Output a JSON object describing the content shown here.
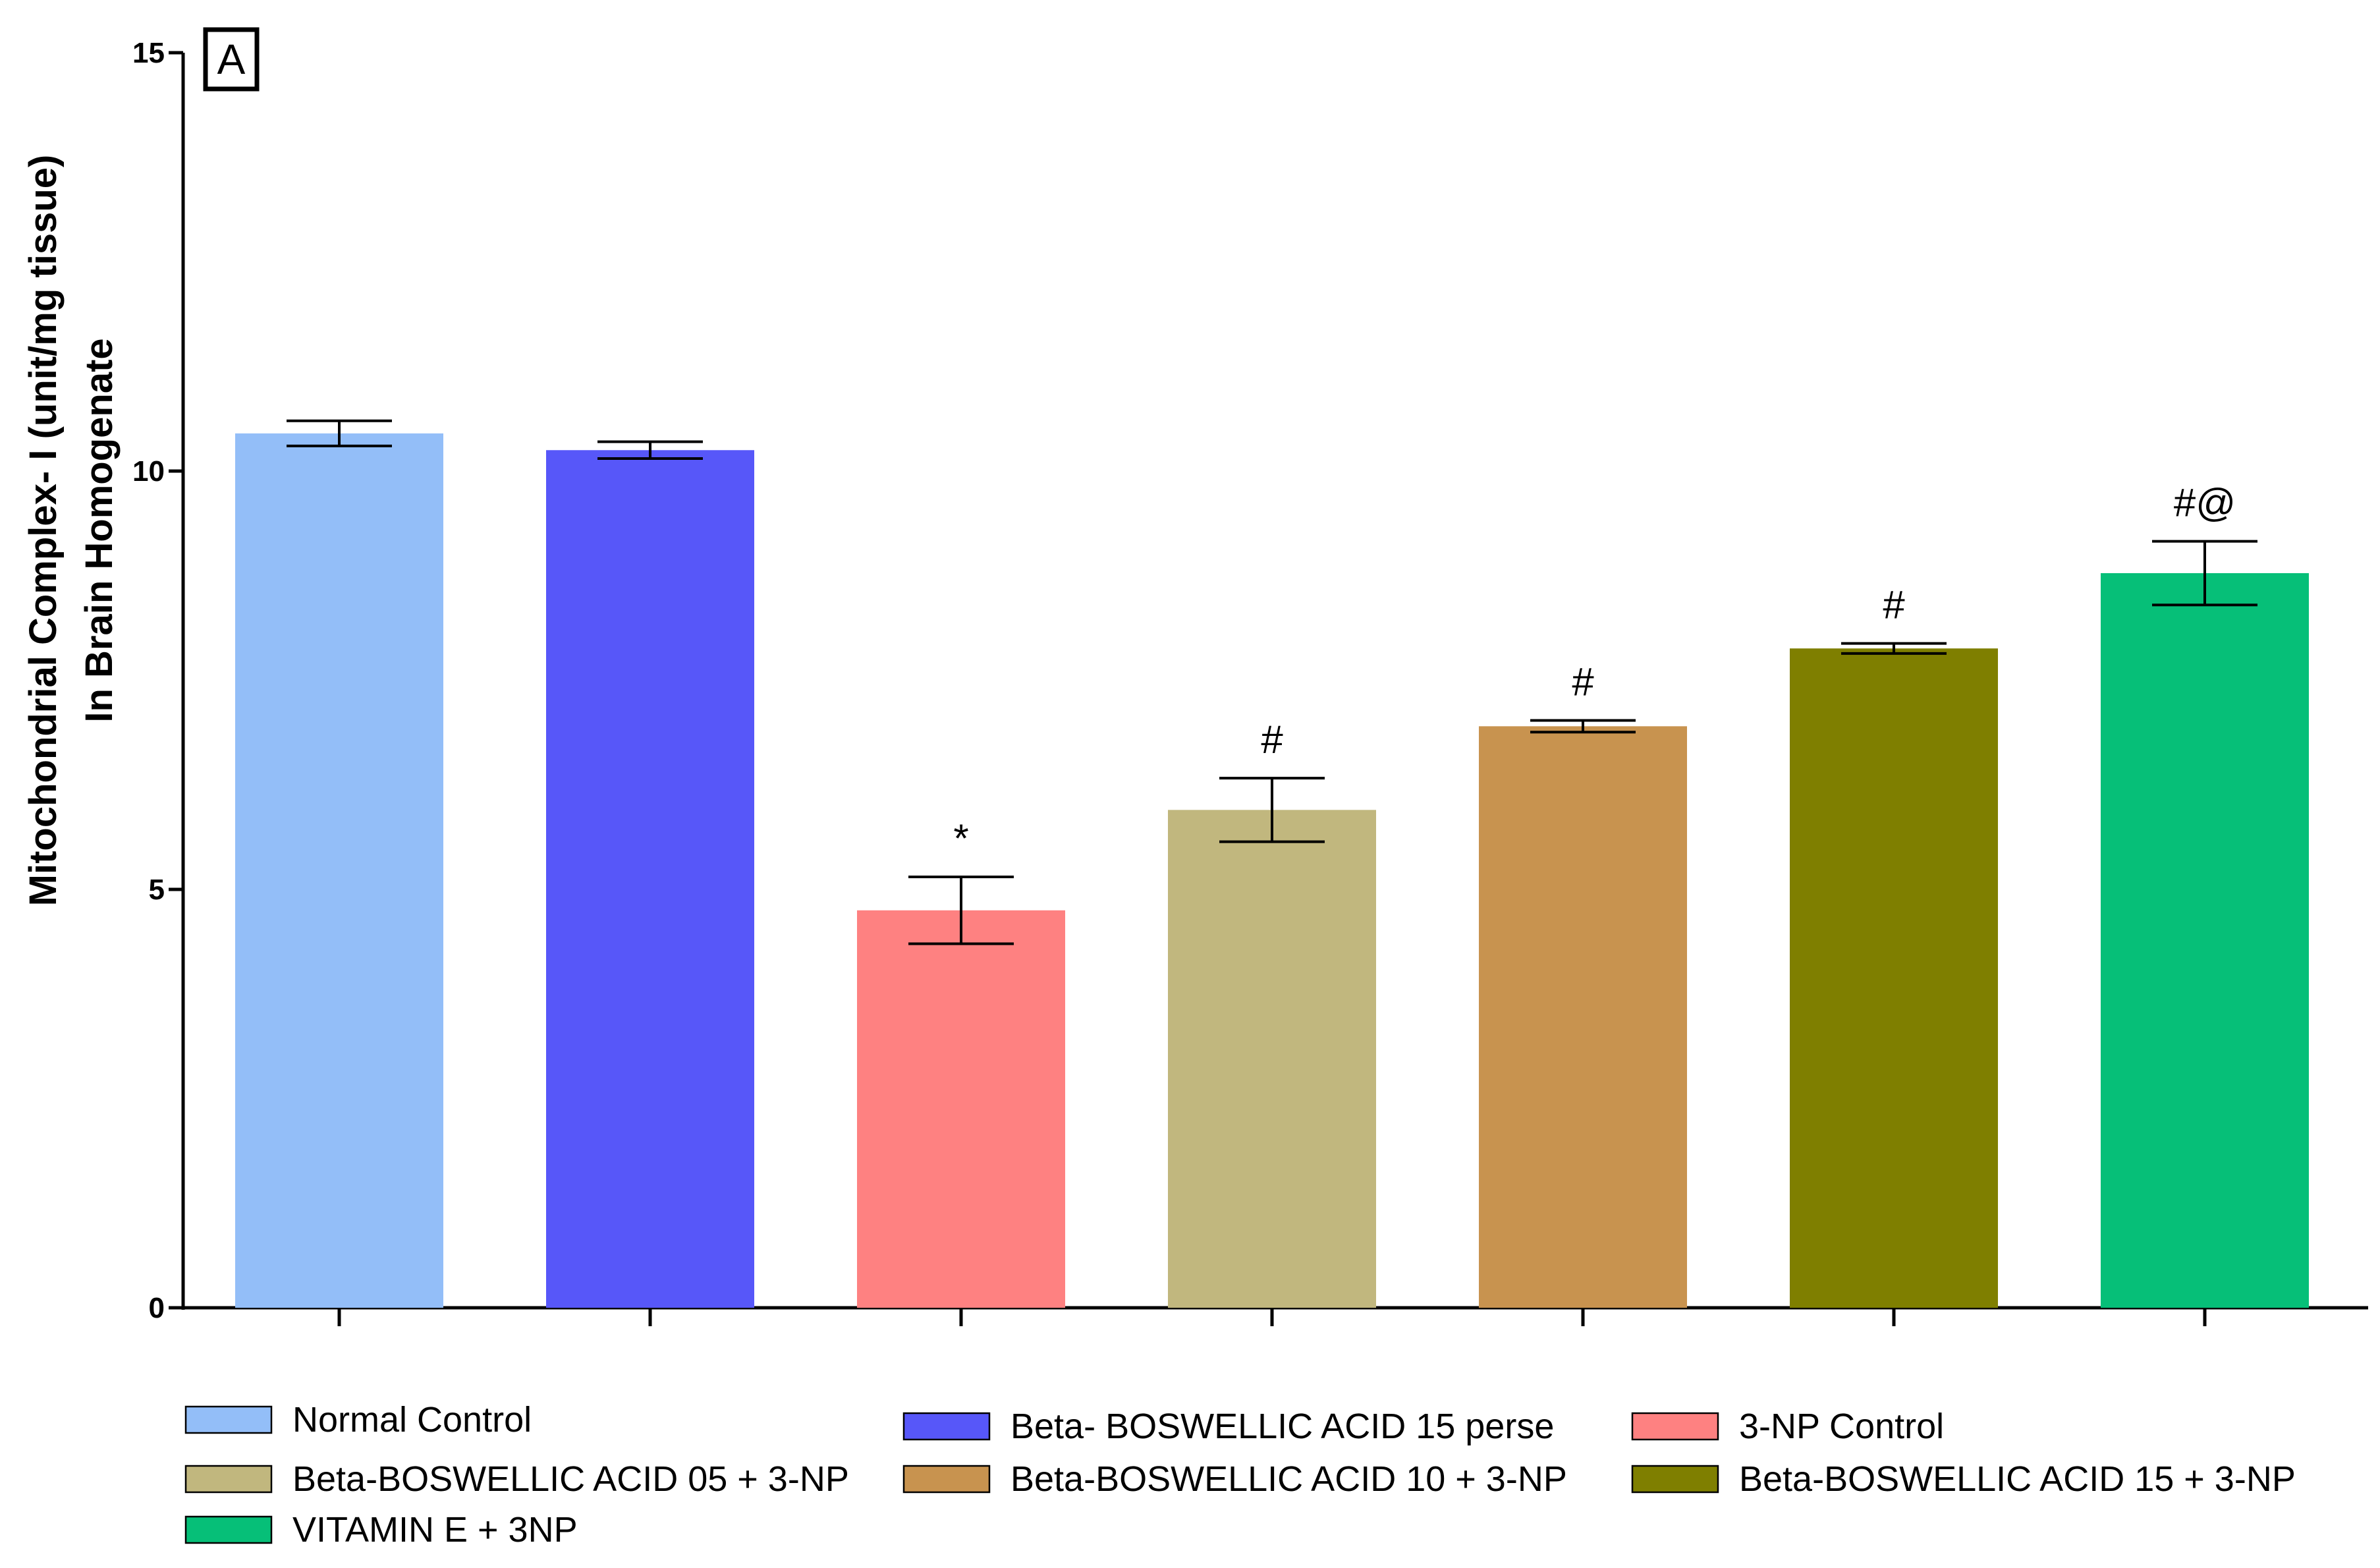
{
  "chart_data": {
    "type": "bar",
    "title": "",
    "panel_label": "A",
    "xlabel": "",
    "ylabel_lines": [
      "Mitochondrial Complex- I (unit/mg tissue)",
      "In Brain Homogenate"
    ],
    "ylim": [
      0,
      15
    ],
    "yticks": [
      0,
      5,
      10,
      15
    ],
    "ytick_labels": [
      "0",
      "5",
      "10",
      "15"
    ],
    "categories": [
      "Normal Control",
      "Beta- BOSWELLIC ACID 15 perse",
      "3-NP Control",
      "Beta-BOSWELLIC ACID 05 + 3-NP",
      "Beta-BOSWELLIC ACID 10 + 3-NP",
      "Beta-BOSWELLIC ACID 15 + 3-NP",
      "VITAMIN E + 3NP"
    ],
    "values": [
      10.45,
      10.25,
      4.75,
      5.95,
      6.95,
      7.88,
      8.78
    ],
    "errors": [
      0.15,
      0.1,
      0.4,
      0.38,
      0.07,
      0.06,
      0.38
    ],
    "colors": [
      "#93bef8",
      "#5757f9",
      "#fe8181",
      "#c1b77e",
      "#c8934f",
      "#7f7f00",
      "#06bf78"
    ],
    "annotations": [
      "",
      "",
      "*",
      "#",
      "#",
      "#",
      "#@"
    ],
    "legend": {
      "placement": "bottom",
      "rows": [
        [
          "Normal Control",
          "Beta- BOSWELLIC ACID 15 perse",
          "3-NP Control"
        ],
        [
          "Beta-BOSWELLIC ACID 05 + 3-NP",
          "Beta-BOSWELLIC ACID 10 + 3-NP",
          "Beta-BOSWELLIC ACID 15 + 3-NP"
        ],
        [
          "VITAMIN E + 3NP"
        ]
      ]
    }
  }
}
